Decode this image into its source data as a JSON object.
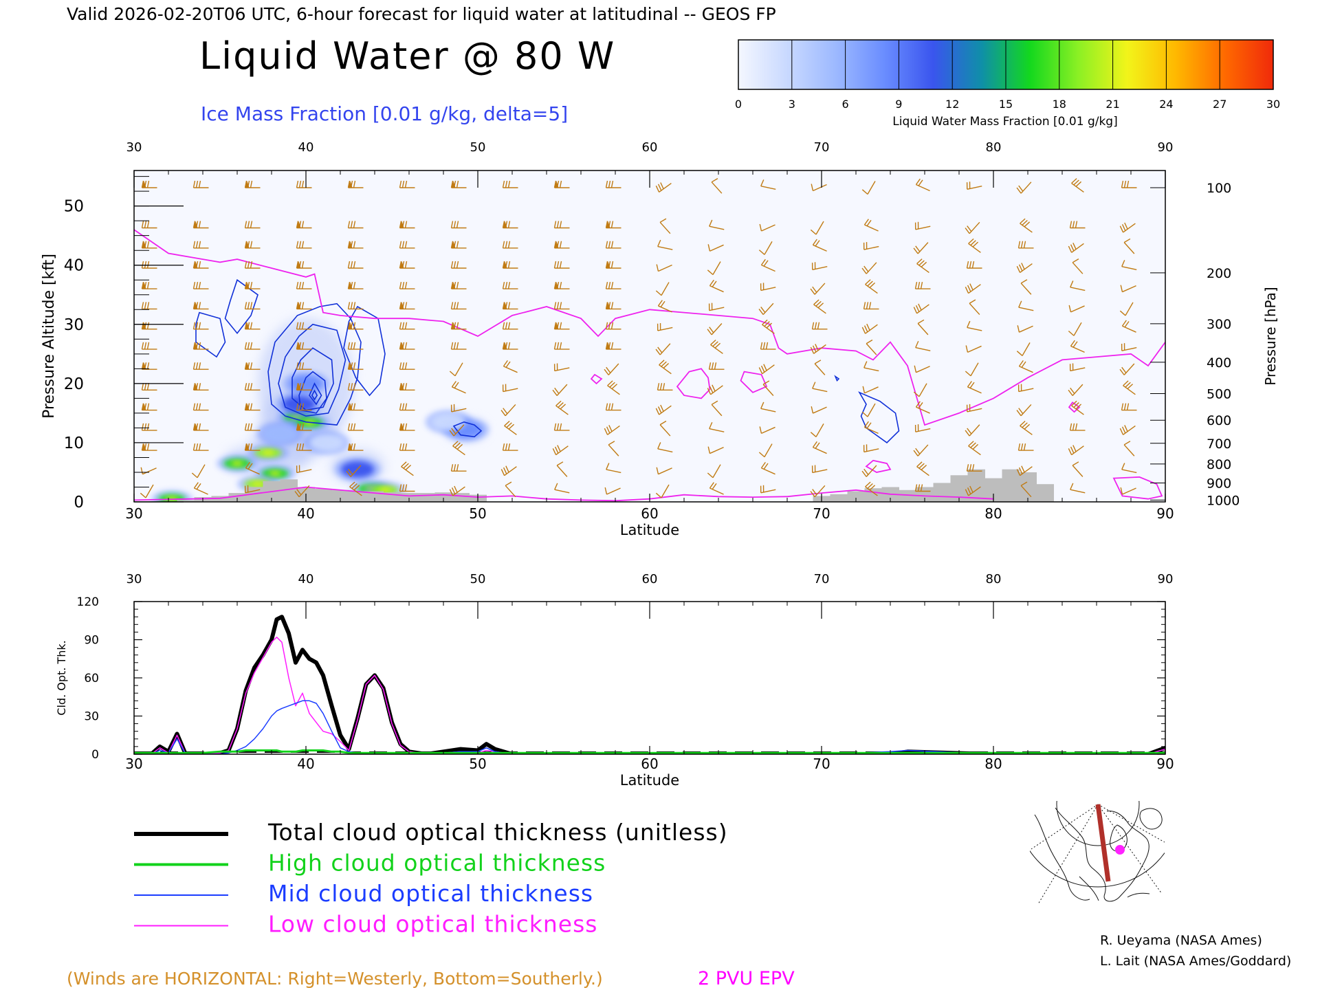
{
  "header": {
    "valid_line": "Valid 2026-02-20T06 UTC, 6-hour forecast for liquid water at latitudinal -- GEOS FP",
    "main_title": "Liquid Water @ 80 W",
    "ice_subtitle": "Ice Mass Fraction [0.01 g/kg, delta=5]"
  },
  "colorbar": {
    "ticks": [
      "0",
      "3",
      "6",
      "9",
      "12",
      "15",
      "18",
      "21",
      "24",
      "27",
      "30"
    ],
    "label": "Liquid Water Mass Fraction [0.01 g/kg]",
    "colors": [
      "#f4f7ff",
      "#c9d9ff",
      "#9db9ff",
      "#6a8dff",
      "#3a55ee",
      "#0f8fa8",
      "#13d81e",
      "#8cf024",
      "#f2f41a",
      "#ffb800",
      "#ff6a00",
      "#f02a0a"
    ]
  },
  "chart_data": [
    {
      "type": "heatmap",
      "title": "Liquid Water @ 80 W",
      "xlabel": "Latitude",
      "ylabel": "Pressure Altitude [kft]",
      "y2label": "Pressure [hPa]",
      "xlim": [
        30,
        90
      ],
      "ylim": [
        0,
        56
      ],
      "x_ticks": [
        "30",
        "40",
        "50",
        "60",
        "70",
        "80",
        "90"
      ],
      "y_ticks": [
        "0",
        "10",
        "20",
        "30",
        "40",
        "50"
      ],
      "pressure_ticks": [
        {
          "label": "100",
          "kft": 53.1
        },
        {
          "label": "200",
          "kft": 38.7
        },
        {
          "label": "300",
          "kft": 30.1
        },
        {
          "label": "400",
          "kft": 23.6
        },
        {
          "label": "500",
          "kft": 18.3
        },
        {
          "label": "600",
          "kft": 13.8
        },
        {
          "label": "700",
          "kft": 9.9
        },
        {
          "label": "800",
          "kft": 6.4
        },
        {
          "label": "900",
          "kft": 3.2
        },
        {
          "label": "1000",
          "kft": 0.3
        }
      ],
      "liquid_blobs": [
        {
          "lat": 32.2,
          "kft": 0.5,
          "value": 16
        },
        {
          "lat": 36.0,
          "kft": 6.5,
          "value": 17
        },
        {
          "lat": 37.8,
          "kft": 8.3,
          "value": 18
        },
        {
          "lat": 38.2,
          "kft": 4.8,
          "value": 15
        },
        {
          "lat": 37.2,
          "kft": 3.0,
          "value": 18
        },
        {
          "lat": 39.5,
          "kft": 14.3,
          "value": 16
        },
        {
          "lat": 40.2,
          "kft": 13.4,
          "value": 17
        },
        {
          "lat": 43.0,
          "kft": 5.5,
          "value": 12
        },
        {
          "lat": 43.8,
          "kft": 2.2,
          "value": 16
        },
        {
          "lat": 44.6,
          "kft": 2.0,
          "value": 18
        },
        {
          "lat": 49.3,
          "kft": 12.2,
          "value": 9
        },
        {
          "lat": 40.0,
          "kft": 20,
          "value": 7
        },
        {
          "lat": 39.6,
          "kft": 16.5,
          "value": 10
        },
        {
          "lat": 41.2,
          "kft": 10.0,
          "value": 4
        },
        {
          "lat": 38.5,
          "kft": 11.5,
          "value": 5
        },
        {
          "lat": 48.3,
          "kft": 13.5,
          "value": 2
        }
      ],
      "ice_contours": [
        {
          "lat": [
            36.0,
            37.2,
            36.8,
            36.0,
            35.3,
            35.6,
            36.0
          ],
          "kft": [
            37.5,
            35.0,
            31.5,
            28.5,
            31.0,
            34.0,
            37.5
          ]
        },
        {
          "lat": [
            33.8,
            35.0,
            35.3,
            34.8,
            33.6,
            33.6,
            33.8
          ],
          "kft": [
            32.0,
            31.0,
            27.0,
            24.5,
            27.0,
            30.0,
            32.0
          ]
        },
        {
          "lat": [
            40.8,
            41.8,
            42.6,
            43.2,
            43.0,
            42.6,
            41.8,
            40.0,
            38.8,
            38.0,
            37.8,
            38.2,
            39.5,
            40.8
          ],
          "kft": [
            33.0,
            33.5,
            31.0,
            27.0,
            21.0,
            17.5,
            13.0,
            13.5,
            14.5,
            16.5,
            22.0,
            27.0,
            31.5,
            33.0
          ]
        },
        {
          "lat": [
            40.4,
            41.8,
            42.3,
            41.9,
            41.3,
            40.0,
            38.8,
            38.4,
            38.8,
            39.6,
            40.4
          ],
          "kft": [
            30.0,
            29.0,
            24.0,
            19.0,
            15.0,
            14.5,
            16.0,
            20.0,
            24.5,
            28.0,
            30.0
          ]
        },
        {
          "lat": [
            40.4,
            41.5,
            41.6,
            41.0,
            40.0,
            39.2,
            39.2,
            39.7,
            40.4
          ],
          "kft": [
            26.0,
            24.0,
            20.0,
            16.0,
            15.5,
            17.5,
            21.0,
            24.0,
            26.0
          ]
        },
        {
          "lat": [
            40.4,
            41.1,
            41.2,
            40.6,
            39.7,
            39.6,
            40.0,
            40.4
          ],
          "kft": [
            22.0,
            20.5,
            17.5,
            15.0,
            15.5,
            18.0,
            21.0,
            22.0
          ]
        },
        {
          "lat": [
            40.5,
            40.9,
            40.6,
            40.2,
            40.5
          ],
          "kft": [
            20.0,
            18.0,
            16.5,
            18.0,
            20.0
          ]
        },
        {
          "lat": [
            40.5,
            40.65,
            40.5,
            40.35,
            40.5
          ],
          "kft": [
            18.8,
            18.0,
            17.3,
            18.0,
            18.8
          ]
        },
        {
          "lat": [
            43.0,
            44.2,
            44.6,
            44.3,
            43.7,
            42.9,
            42.2,
            42.5,
            43.0
          ],
          "kft": [
            33.0,
            31.0,
            25.0,
            20.0,
            18.0,
            21.0,
            26.0,
            30.5,
            33.0
          ]
        },
        {
          "lat": [
            48.6,
            49.2,
            49.8,
            50.2,
            49.8,
            49.0,
            48.6
          ],
          "kft": [
            12.8,
            13.5,
            13.0,
            12.0,
            11.0,
            11.3,
            12.8
          ]
        },
        {
          "lat": [
            72.2,
            73.4,
            74.3,
            74.5,
            73.8,
            72.6,
            72.3,
            72.6,
            72.2
          ],
          "kft": [
            18.5,
            17.0,
            15.0,
            12.0,
            10.0,
            12.5,
            14.5,
            16.5,
            18.5
          ]
        },
        {
          "lat": [
            70.8,
            71.0,
            70.9,
            70.8
          ],
          "kft": [
            21.2,
            20.8,
            20.5,
            21.2
          ]
        }
      ],
      "epv_2pvu": [
        {
          "lat": [
            30,
            32,
            34,
            35,
            36,
            38,
            40,
            40.5,
            41,
            42,
            44,
            46,
            48,
            50,
            52,
            54,
            56,
            57,
            58,
            60,
            62,
            64,
            66,
            67,
            67.5,
            68,
            70,
            72,
            73,
            74,
            75,
            76,
            78,
            80,
            82,
            84,
            86,
            88,
            89,
            90
          ],
          "kft": [
            46,
            42,
            41,
            40.5,
            41,
            39.5,
            38,
            38.5,
            32,
            31.5,
            31,
            31,
            30.5,
            28,
            31.5,
            33,
            31,
            28,
            31,
            32.5,
            32,
            31.5,
            31,
            30,
            26,
            25,
            26,
            25.5,
            24,
            27,
            23,
            13,
            15,
            17.5,
            21,
            24,
            24.5,
            25,
            23,
            27
          ]
        },
        {
          "lat": [
            30,
            35,
            40,
            44,
            46,
            48,
            50,
            52,
            54,
            56,
            58,
            60,
            62,
            64,
            66,
            68,
            70,
            72,
            74,
            76,
            78,
            80
          ],
          "kft": [
            0.3,
            0.6,
            2.5,
            1.5,
            1.0,
            1.2,
            0.8,
            1.0,
            0.5,
            0.3,
            0.2,
            0.5,
            1.2,
            0.9,
            0.8,
            0.9,
            1.5,
            2.0,
            1.3,
            1.0,
            0.8,
            0.5
          ]
        },
        {
          "lat": [
            62.3,
            63.0,
            63.4,
            63.5,
            63.0,
            62.0,
            61.6,
            62.3
          ],
          "kft": [
            22.0,
            22.5,
            21.0,
            19.0,
            17.5,
            18.0,
            19.5,
            22.0
          ]
        },
        {
          "lat": [
            65.5,
            66.5,
            66.8,
            66.0,
            65.3,
            65.5
          ],
          "kft": [
            22.0,
            21.5,
            19.5,
            18.5,
            20.5,
            22.0
          ]
        },
        {
          "lat": [
            56.8,
            57.2,
            56.9,
            56.6,
            56.8
          ],
          "kft": [
            21.5,
            20.8,
            20.0,
            20.8,
            21.5
          ]
        },
        {
          "lat": [
            73.0,
            73.8,
            74.0,
            73.2,
            72.6,
            73.0
          ],
          "kft": [
            7.0,
            6.5,
            5.5,
            5.0,
            6.0,
            7.0
          ]
        },
        {
          "lat": [
            84.6,
            85.0,
            84.7,
            84.4,
            84.6
          ],
          "kft": [
            16.8,
            16.0,
            15.2,
            16.0,
            16.8
          ]
        },
        {
          "lat": [
            87.0,
            88.5,
            89.5,
            89.8,
            89.0,
            87.5,
            87.0
          ],
          "kft": [
            4.0,
            4.2,
            3.0,
            1.0,
            0.5,
            1.0,
            4.0
          ]
        }
      ],
      "terrain": {
        "lat": [
          33,
          34,
          35,
          36,
          37,
          38,
          39,
          40,
          41,
          42,
          43,
          44,
          45,
          46,
          47,
          48,
          49,
          50,
          51,
          70,
          71,
          72,
          73,
          74,
          75,
          76,
          77,
          78,
          79,
          80,
          81,
          82,
          83
        ],
        "kft": [
          0.3,
          0.8,
          1.0,
          1.5,
          2.5,
          3.5,
          3.8,
          2.5,
          2.2,
          2.0,
          1.8,
          1.8,
          1.6,
          1.5,
          1.5,
          1.6,
          1.5,
          1.2,
          0,
          1.0,
          1.3,
          1.8,
          2.3,
          2.5,
          2.0,
          2.5,
          3.2,
          4.5,
          5.5,
          4.0,
          5.5,
          5.0,
          3.0
        ]
      },
      "wind_barbs": {
        "lat": [
          30.9,
          33.9,
          36.9,
          39.9,
          42.9,
          45.9,
          48.9,
          51.9,
          54.9,
          57.9,
          60.9,
          63.9,
          66.9,
          69.9,
          72.9,
          75.9,
          78.9,
          81.9,
          84.9,
          87.9
        ],
        "kft": [
          1.8,
          5.2,
          8.7,
          12.1,
          15.5,
          18.9,
          22.4,
          25.8,
          29.2,
          32.6,
          36.0,
          39.5,
          42.9,
          46.3,
          53.1
        ]
      }
    },
    {
      "type": "line",
      "title": "",
      "xlabel": "Latitude",
      "ylabel": "Cld. Opt. Thk.",
      "xlim": [
        30,
        90
      ],
      "ylim": [
        0,
        120
      ],
      "x_ticks": [
        "30",
        "40",
        "50",
        "60",
        "70",
        "80",
        "90"
      ],
      "y_ticks": [
        "0",
        "30",
        "60",
        "90",
        "120"
      ],
      "x": [
        30,
        31,
        31.5,
        32,
        32.5,
        33,
        34,
        35,
        35.5,
        36,
        36.5,
        37,
        37.5,
        38,
        38.3,
        38.6,
        39,
        39.4,
        39.8,
        40.2,
        40.6,
        41,
        41.5,
        42,
        42.5,
        43,
        43.5,
        44,
        44.5,
        45,
        45.5,
        46,
        47,
        48,
        49,
        50,
        50.5,
        51,
        52,
        60,
        70,
        74,
        75,
        80,
        89,
        90
      ],
      "series": [
        {
          "name": "Total cloud optical thickness (unitless)",
          "color": "#000000",
          "width": 6,
          "values": [
            0,
            0,
            6,
            2,
            16,
            0,
            0,
            1,
            3,
            20,
            50,
            68,
            78,
            90,
            106,
            108,
            95,
            72,
            82,
            75,
            72,
            62,
            38,
            15,
            4,
            28,
            55,
            62,
            52,
            25,
            8,
            2,
            0,
            2,
            4,
            3,
            8,
            4,
            0,
            0,
            0,
            0,
            2,
            0,
            0,
            5
          ]
        },
        {
          "name": "High cloud optical thickness",
          "color": "#12d21b",
          "width": 3,
          "values": [
            1,
            1,
            1,
            1,
            1,
            1,
            1,
            2,
            2,
            2,
            3,
            3,
            3,
            3,
            3,
            2,
            2,
            2,
            3,
            3,
            3,
            3,
            2,
            2,
            1,
            1,
            1,
            1,
            1,
            1,
            1,
            1,
            1,
            1,
            1,
            1,
            1,
            1,
            1,
            1,
            1,
            1,
            1,
            1,
            1,
            1
          ]
        },
        {
          "name": "Mid cloud optical thickness",
          "color": "#1a3cff",
          "width": 1.5,
          "values": [
            0,
            0,
            3,
            1,
            12,
            0,
            0,
            0,
            1,
            3,
            6,
            12,
            20,
            30,
            34,
            36,
            38,
            40,
            42,
            42,
            40,
            32,
            18,
            5,
            2,
            1,
            1,
            1,
            1,
            1,
            1,
            0,
            0,
            1,
            2,
            2,
            5,
            2,
            0,
            0,
            0,
            2,
            3,
            0,
            0,
            1
          ]
        },
        {
          "name": "Low cloud optical thickness",
          "color": "#ff1cff",
          "width": 1.5,
          "values": [
            0,
            0,
            5,
            1,
            15,
            0,
            0,
            1,
            3,
            20,
            48,
            64,
            76,
            88,
            92,
            88,
            60,
            38,
            48,
            32,
            25,
            18,
            16,
            10,
            3,
            27,
            55,
            62,
            51,
            24,
            7,
            2,
            0,
            1,
            2,
            1,
            3,
            2,
            0,
            0,
            0,
            0,
            1,
            0,
            0,
            4
          ]
        }
      ]
    }
  ],
  "legend": {
    "entries": [
      {
        "label": "Total cloud optical thickness (unitless)",
        "color": "#000000",
        "width": 6
      },
      {
        "label": "High cloud optical thickness",
        "color": "#12d21b",
        "width": 4
      },
      {
        "label": "Mid cloud optical thickness",
        "color": "#1a3cff",
        "width": 2
      },
      {
        "label": "Low cloud optical thickness",
        "color": "#ff1cff",
        "width": 2
      }
    ]
  },
  "footer": {
    "winds_note": "(Winds are HORIZONTAL: Right=Westerly, Bottom=Southerly.)",
    "epv_note": "2 PVU EPV",
    "credit1": "R. Ueyama (NASA Ames)",
    "credit2": "L. Lait (NASA Ames/Goddard)",
    "winds_color": "#d4902a",
    "epv_color": "#ff00ff"
  },
  "colors": {
    "wind_barb": "#c07a12",
    "ice_contour": "#1030d8",
    "epv": "#ee22ee",
    "terrain": "#bdbdbd",
    "ice_shade": "#b9c8f8",
    "background_plot": "#f6f8ff",
    "map_track": "#b0302a",
    "map_marker": "#ff22ff"
  }
}
